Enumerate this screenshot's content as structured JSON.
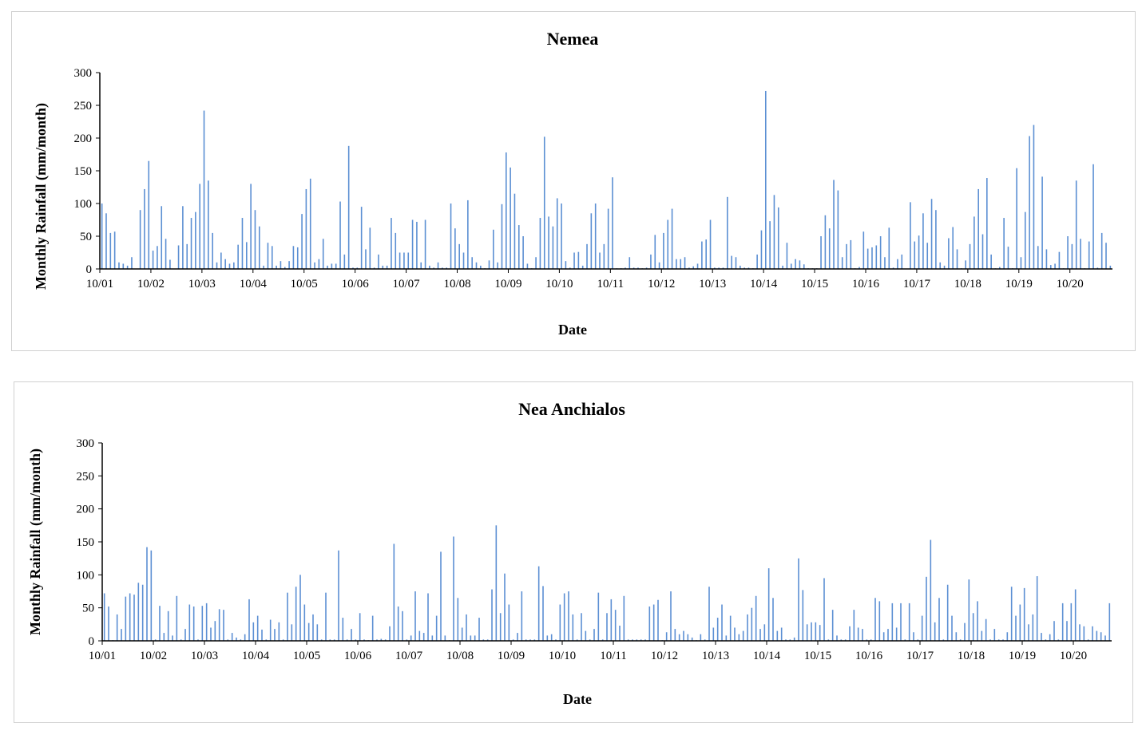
{
  "chart_data": [
    {
      "type": "bar",
      "title": "Nemea",
      "xlabel": "Date",
      "ylabel": "Monthly Rainfall  (mm/month)",
      "ylim": [
        0,
        300
      ],
      "yticks": [
        0,
        50,
        100,
        150,
        200,
        250,
        300
      ],
      "xticks": [
        "10/01",
        "10/02",
        "10/03",
        "10/04",
        "10/05",
        "10/06",
        "10/07",
        "10/08",
        "10/09",
        "10/10",
        "10/11",
        "10/12",
        "10/13",
        "10/14",
        "10/15",
        "10/16",
        "10/17",
        "10/18",
        "10/19",
        "10/20"
      ],
      "grid": false,
      "legend": "none",
      "bar_color": "#5b8fd3",
      "values": [
        100,
        85,
        55,
        57,
        10,
        8,
        5,
        18,
        0,
        90,
        122,
        165,
        28,
        35,
        96,
        46,
        14,
        0,
        36,
        96,
        38,
        78,
        87,
        130,
        242,
        135,
        55,
        10,
        25,
        15,
        8,
        10,
        37,
        78,
        41,
        130,
        90,
        65,
        5,
        40,
        35,
        5,
        12,
        3,
        12,
        35,
        33,
        84,
        122,
        138,
        10,
        15,
        46,
        5,
        8,
        8,
        103,
        22,
        188,
        2,
        2,
        95,
        30,
        63,
        2,
        22,
        5,
        5,
        78,
        55,
        25,
        25,
        25,
        75,
        72,
        10,
        75,
        5,
        2,
        10,
        2,
        2,
        100,
        62,
        38,
        25,
        105,
        18,
        10,
        5,
        1,
        13,
        60,
        10,
        99,
        178,
        155,
        115,
        67,
        50,
        8,
        1,
        18,
        78,
        202,
        80,
        65,
        108,
        100,
        12,
        2,
        25,
        26,
        5,
        38,
        85,
        100,
        25,
        38,
        92,
        140,
        1,
        1,
        2,
        18,
        2,
        2,
        1,
        2,
        22,
        52,
        10,
        55,
        75,
        92,
        15,
        15,
        18,
        2,
        4,
        8,
        42,
        45,
        75,
        2,
        2,
        2,
        110,
        20,
        18,
        5,
        2,
        2,
        1,
        22,
        59,
        272,
        73,
        113,
        94,
        5,
        40,
        8,
        15,
        13,
        7,
        1,
        1,
        1,
        50,
        82,
        62,
        136,
        120,
        18,
        38,
        44,
        1,
        3,
        57,
        31,
        33,
        36,
        50,
        18,
        63,
        2,
        15,
        22,
        0,
        102,
        42,
        51,
        85,
        40,
        107,
        90,
        10,
        5,
        47,
        64,
        30,
        1,
        13,
        38,
        80,
        122,
        53,
        139,
        22,
        1,
        3,
        78,
        34,
        1,
        154,
        18,
        87,
        203,
        220,
        35,
        141,
        30,
        6,
        8,
        26,
        1,
        50,
        38,
        135,
        46,
        1,
        42,
        160,
        2,
        55,
        40,
        5
      ]
    },
    {
      "type": "bar",
      "title": "Nea Anchialos",
      "xlabel": "Date",
      "ylabel": "Monthly Rainfall (mm/month)",
      "ylim": [
        0,
        300
      ],
      "yticks": [
        0,
        50,
        100,
        150,
        200,
        250,
        300
      ],
      "xticks": [
        "10/01",
        "10/02",
        "10/03",
        "10/04",
        "10/05",
        "10/06",
        "10/07",
        "10/08",
        "10/09",
        "10/10",
        "10/11",
        "10/12",
        "10/13",
        "10/14",
        "10/15",
        "10/16",
        "10/17",
        "10/18",
        "10/19",
        "10/20"
      ],
      "grid": false,
      "legend": "none",
      "bar_color": "#5b8fd3",
      "values": [
        72,
        52,
        1,
        40,
        18,
        67,
        72,
        70,
        88,
        85,
        142,
        137,
        2,
        53,
        12,
        45,
        8,
        68,
        2,
        18,
        55,
        52,
        2,
        53,
        57,
        20,
        30,
        48,
        47,
        2,
        12,
        5,
        2,
        10,
        63,
        28,
        38,
        17,
        2,
        32,
        18,
        28,
        2,
        73,
        25,
        82,
        100,
        55,
        27,
        40,
        25,
        2,
        73,
        2,
        2,
        137,
        35,
        2,
        18,
        2,
        42,
        2,
        1,
        38,
        2,
        3,
        2,
        22,
        147,
        52,
        45,
        2,
        8,
        75,
        15,
        12,
        72,
        8,
        38,
        135,
        8,
        1,
        158,
        65,
        20,
        40,
        8,
        8,
        35,
        2,
        2,
        78,
        175,
        42,
        102,
        55,
        2,
        12,
        75,
        2,
        2,
        2,
        113,
        83,
        8,
        10,
        2,
        55,
        72,
        75,
        40,
        2,
        42,
        15,
        2,
        18,
        73,
        2,
        42,
        63,
        47,
        23,
        68,
        2,
        2,
        2,
        2,
        2,
        52,
        55,
        62,
        1,
        13,
        75,
        18,
        10,
        15,
        10,
        5,
        1,
        10,
        2,
        82,
        20,
        35,
        55,
        8,
        38,
        20,
        10,
        15,
        40,
        50,
        68,
        18,
        25,
        110,
        65,
        15,
        20,
        2,
        2,
        5,
        125,
        77,
        25,
        28,
        28,
        24,
        95,
        2,
        47,
        8,
        2,
        2,
        22,
        47,
        20,
        18,
        2,
        2,
        65,
        60,
        13,
        18,
        57,
        20,
        57,
        2,
        57,
        13,
        2,
        38,
        97,
        153,
        28,
        65,
        2,
        85,
        38,
        13,
        2,
        27,
        93,
        42,
        60,
        15,
        33,
        2,
        18,
        2,
        2,
        13,
        82,
        38,
        55,
        80,
        25,
        40,
        98,
        12,
        2,
        10,
        30,
        2,
        57,
        30,
        57,
        78,
        25,
        22,
        2,
        22,
        15,
        13,
        8,
        57
      ]
    }
  ]
}
